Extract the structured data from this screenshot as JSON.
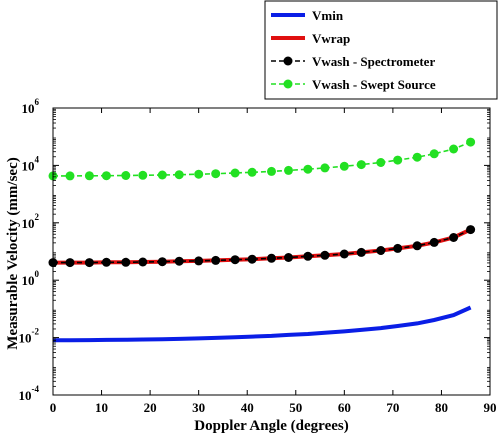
{
  "chart_data": {
    "type": "line",
    "xlabel": "Doppler Angle (degrees)",
    "ylabel": "Measurable Velocity (mm/sec)",
    "xlim": [
      0,
      90
    ],
    "ylim": [
      0.0001,
      1000000
    ],
    "yscale": "log",
    "grid": false,
    "legend_position": "top-right",
    "x_ticks": [
      "0",
      "10",
      "20",
      "30",
      "40",
      "50",
      "60",
      "70",
      "80",
      "90"
    ],
    "y_ticks": [
      {
        "base": "10",
        "exp": "-4"
      },
      {
        "base": "10",
        "exp": "-2"
      },
      {
        "base": "10",
        "exp": "0"
      },
      {
        "base": "10",
        "exp": "2"
      },
      {
        "base": "10",
        "exp": "4"
      },
      {
        "base": "10",
        "exp": "6"
      }
    ],
    "x": [
      0,
      3.5,
      7.5,
      11,
      15,
      18.5,
      22.5,
      26,
      30,
      33.5,
      37.5,
      41,
      45,
      48.5,
      52.5,
      56,
      60,
      63.5,
      67.5,
      71,
      75,
      78.5,
      82.5,
      86
    ],
    "series": [
      {
        "name": "Vmin",
        "color": "#0a1ee6",
        "style": "solid",
        "marker": "none",
        "values": [
          0.0081,
          0.0081,
          0.0082,
          0.0083,
          0.0084,
          0.0086,
          0.0088,
          0.009,
          0.0094,
          0.0098,
          0.0103,
          0.0108,
          0.0115,
          0.0124,
          0.0134,
          0.0147,
          0.0164,
          0.0185,
          0.0214,
          0.0254,
          0.0313,
          0.041,
          0.061,
          0.112
        ]
      },
      {
        "name": "Vwrap",
        "color": "#e01010",
        "style": "solid",
        "marker": "none",
        "values": [
          4.1,
          4.1,
          4.1,
          4.2,
          4.2,
          4.3,
          4.4,
          4.6,
          4.7,
          4.9,
          5.2,
          5.4,
          5.8,
          6.2,
          6.8,
          7.4,
          8.2,
          9.3,
          10.8,
          12.8,
          15.8,
          20.7,
          30.8,
          58
        ]
      },
      {
        "name": "Vwash - Spectrometer",
        "color": "#000000",
        "style": "dashed",
        "marker": "circle",
        "values": [
          4.1,
          4.1,
          4.1,
          4.2,
          4.2,
          4.3,
          4.4,
          4.6,
          4.7,
          4.9,
          5.2,
          5.4,
          5.8,
          6.2,
          6.8,
          7.4,
          8.2,
          9.3,
          10.8,
          12.8,
          15.8,
          20.7,
          30.8,
          58
        ]
      },
      {
        "name": "Vwash - Swept Source",
        "color": "#22e022",
        "style": "dashed",
        "marker": "circle",
        "values": [
          4300,
          4310,
          4340,
          4380,
          4440,
          4520,
          4620,
          4760,
          4930,
          5150,
          5420,
          5750,
          6180,
          6700,
          7350,
          8200,
          9300,
          10700,
          12600,
          15300,
          19300,
          25400,
          37300,
          65000
        ]
      }
    ]
  }
}
